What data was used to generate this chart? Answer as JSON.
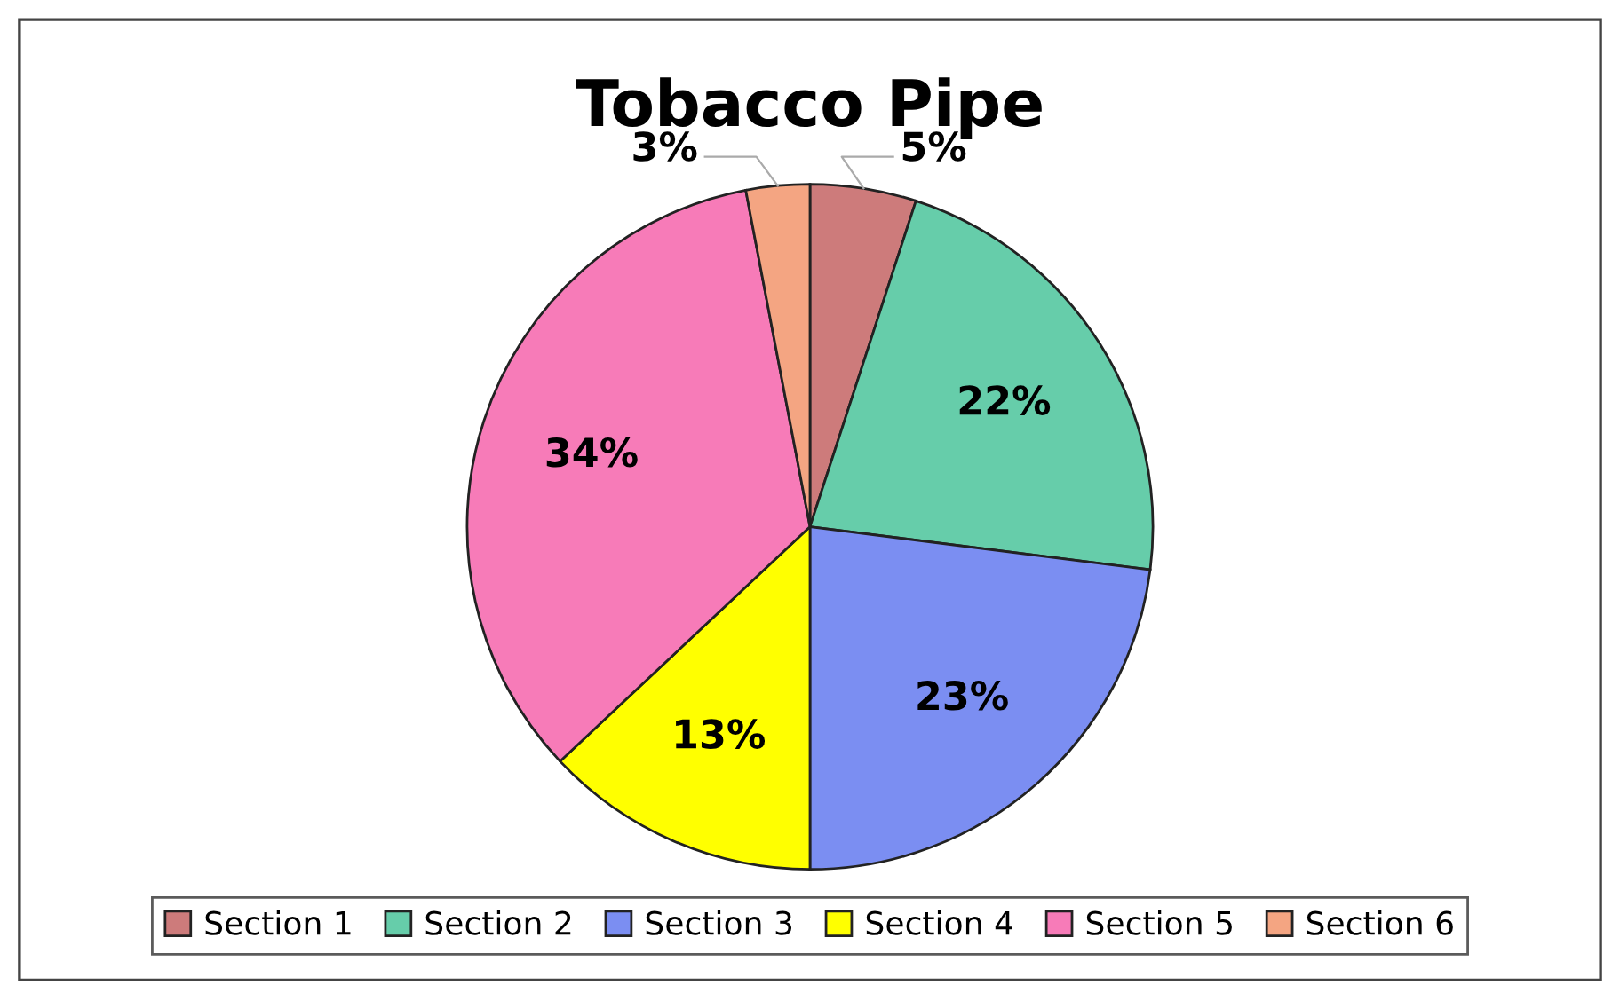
{
  "chart_data": {
    "type": "pie",
    "title": "Tobacco Pipe",
    "categories": [
      "Section 1",
      "Section 2",
      "Section 3",
      "Section 4",
      "Section 5",
      "Section 6"
    ],
    "values": [
      5,
      22,
      23,
      13,
      34,
      3
    ],
    "value_labels": [
      "5%",
      "22%",
      "23%",
      "13%",
      "34%",
      "3%"
    ],
    "colors": [
      "#cd7b7b",
      "#66cdaa",
      "#7b8ef2",
      "#ffff00",
      "#f77bb8",
      "#f4a582"
    ],
    "legend": "bottom"
  }
}
